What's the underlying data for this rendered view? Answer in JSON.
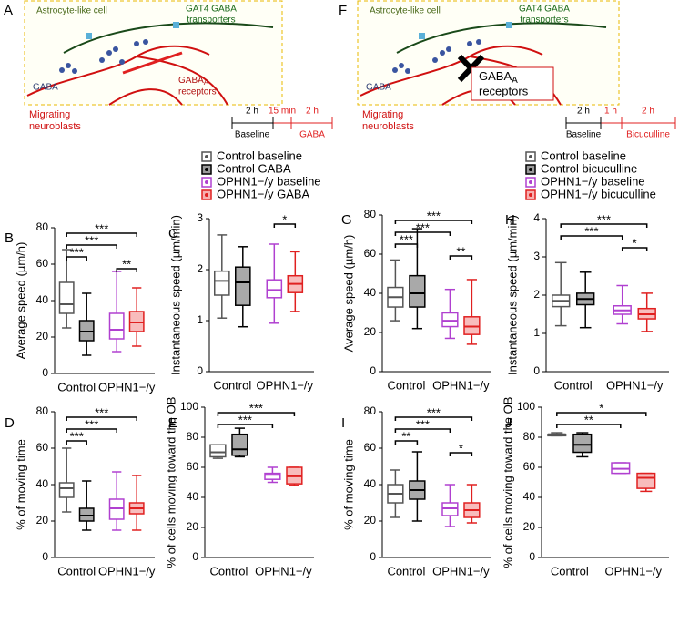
{
  "diagrams": [
    {
      "panel": "A",
      "astrocyte": "Astrocyte-like cell",
      "transporters": [
        "GAT4 GABA",
        "transporters"
      ],
      "gaba": "GABA",
      "receptor_main": "GABA",
      "receptor_sub": "A",
      "receptor_line2": "receptors",
      "neuroblasts": [
        "Migrating",
        "neuroblasts"
      ],
      "durations": [
        "2 h",
        "15 min",
        "2 h"
      ],
      "phases": [
        "Baseline",
        "GABA"
      ]
    },
    {
      "panel": "F",
      "astrocyte": "Astrocyte-like cell",
      "transporters": [
        "GAT4 GABA",
        "transporters"
      ],
      "gaba": "GABA",
      "receptor_main": "GABA",
      "receptor_sub": "A",
      "receptor_line2": "receptors",
      "neuroblasts": [
        "Migrating",
        "neuroblasts"
      ],
      "durations": [
        "2 h",
        "1 h",
        "2 h"
      ],
      "phases": [
        "Baseline",
        "Bicuculline"
      ]
    }
  ],
  "legends": [
    {
      "entries": [
        {
          "name": "Control baseline",
          "fill": "#ffffff",
          "stroke": "#555555"
        },
        {
          "name": "Control GABA",
          "fill": "#9a9a9a",
          "stroke": "#000000"
        },
        {
          "name": "OPHN1−/y baseline",
          "fill": "#ffffff",
          "stroke": "#b040d0"
        },
        {
          "name": "OPHN1−/y GABA",
          "fill": "#f7b0b0",
          "stroke": "#e02020"
        }
      ]
    },
    {
      "entries": [
        {
          "name": "Control baseline",
          "fill": "#ffffff",
          "stroke": "#555555"
        },
        {
          "name": "Control bicuculline",
          "fill": "#9a9a9a",
          "stroke": "#000000"
        },
        {
          "name": "OPHN1−/y baseline",
          "fill": "#ffffff",
          "stroke": "#b040d0"
        },
        {
          "name": "OPHN1−/y bicuculline",
          "fill": "#f7b0b0",
          "stroke": "#e02020"
        }
      ]
    }
  ],
  "chart_data": [
    {
      "type": "box",
      "panel": "B",
      "ylabel": "Average speed (µm/h)",
      "categories": [
        "Control",
        "OPHN1−/y"
      ],
      "ylim": [
        0,
        80
      ],
      "yticks": [
        0,
        20,
        40,
        60,
        80
      ],
      "boxes": [
        {
          "min": 25,
          "q1": 33,
          "median": 38,
          "q3": 50,
          "max": 68
        },
        {
          "min": 10,
          "q1": 18,
          "median": 23,
          "q3": 29,
          "max": 44
        },
        {
          "min": 12,
          "q1": 19,
          "median": 24,
          "q3": 33,
          "max": 56
        },
        {
          "min": 15,
          "q1": 23,
          "median": 28,
          "q3": 34,
          "max": 47
        }
      ],
      "significance": [
        {
          "between": [
            0,
            3
          ],
          "label": "***"
        },
        {
          "between": [
            0,
            2
          ],
          "label": "***"
        },
        {
          "between": [
            0,
            1
          ],
          "label": "***"
        },
        {
          "between": [
            2,
            3
          ],
          "label": "**"
        }
      ]
    },
    {
      "type": "box",
      "panel": "C",
      "ylabel": "Instantaneous speed (µm/min)",
      "categories": [
        "Control",
        "OPHN1−/y"
      ],
      "ylim": [
        0,
        3
      ],
      "yticks": [
        0,
        1,
        2,
        3
      ],
      "boxes": [
        {
          "min": 1.05,
          "q1": 1.5,
          "median": 1.78,
          "q3": 1.97,
          "max": 2.68
        },
        {
          "min": 0.88,
          "q1": 1.3,
          "median": 1.75,
          "q3": 2.05,
          "max": 2.45
        },
        {
          "min": 0.95,
          "q1": 1.45,
          "median": 1.6,
          "q3": 1.8,
          "max": 2.5
        },
        {
          "min": 1.18,
          "q1": 1.55,
          "median": 1.72,
          "q3": 1.88,
          "max": 2.35
        }
      ],
      "significance": [
        {
          "between": [
            2,
            3
          ],
          "label": "*"
        }
      ]
    },
    {
      "type": "box",
      "panel": "D",
      "ylabel": "% of moving time",
      "categories": [
        "Control",
        "OPHN1−/y"
      ],
      "ylim": [
        0,
        80
      ],
      "yticks": [
        0,
        20,
        40,
        60,
        80
      ],
      "boxes": [
        {
          "min": 25,
          "q1": 33,
          "median": 38,
          "q3": 41,
          "max": 60
        },
        {
          "min": 15,
          "q1": 20,
          "median": 23,
          "q3": 27,
          "max": 42
        },
        {
          "min": 15,
          "q1": 21,
          "median": 27,
          "q3": 32,
          "max": 47
        },
        {
          "min": 15,
          "q1": 24,
          "median": 27,
          "q3": 30,
          "max": 45
        }
      ],
      "significance": [
        {
          "between": [
            0,
            3
          ],
          "label": "***"
        },
        {
          "between": [
            0,
            2
          ],
          "label": "***"
        },
        {
          "between": [
            0,
            1
          ],
          "label": "***"
        }
      ]
    },
    {
      "type": "box",
      "panel": "E",
      "ylabel": "% of cells moving toward the OB",
      "categories": [
        "Control",
        "OPHN1−/y"
      ],
      "ylim": [
        0,
        100
      ],
      "yticks": [
        0,
        20,
        40,
        60,
        80,
        100
      ],
      "boxes": [
        {
          "min": 66,
          "q1": 67,
          "median": 70,
          "q3": 75,
          "max": 75
        },
        {
          "min": 67,
          "q1": 68,
          "median": 72,
          "q3": 82,
          "max": 86
        },
        {
          "min": 50,
          "q1": 52,
          "median": 55,
          "q3": 56,
          "max": 60
        },
        {
          "min": 48,
          "q1": 49,
          "median": 54,
          "q3": 60,
          "max": 60
        }
      ],
      "significance": [
        {
          "between": [
            0,
            3
          ],
          "label": "***"
        },
        {
          "between": [
            0,
            2
          ],
          "label": "***"
        }
      ]
    },
    {
      "type": "box",
      "panel": "G",
      "ylabel": "Average speed (µm/h)",
      "categories": [
        "Control",
        "OPHN1−/y"
      ],
      "ylim": [
        0,
        80
      ],
      "yticks": [
        0,
        20,
        40,
        60,
        80
      ],
      "boxes": [
        {
          "min": 26,
          "q1": 33,
          "median": 38,
          "q3": 43,
          "max": 57
        },
        {
          "min": 22,
          "q1": 33,
          "median": 40,
          "q3": 49,
          "max": 73
        },
        {
          "min": 17,
          "q1": 23,
          "median": 26,
          "q3": 30,
          "max": 42
        },
        {
          "min": 14,
          "q1": 19,
          "median": 23,
          "q3": 28,
          "max": 47
        }
      ],
      "significance": [
        {
          "between": [
            0,
            3
          ],
          "label": "***"
        },
        {
          "between": [
            0,
            2
          ],
          "label": "***"
        },
        {
          "between": [
            0,
            1
          ],
          "label": "***"
        },
        {
          "between": [
            2,
            3
          ],
          "label": "**"
        }
      ]
    },
    {
      "type": "box",
      "panel": "H",
      "ylabel": "Instantaneous speed (µm/min)",
      "categories": [
        "Control",
        "OPHN1−/y"
      ],
      "ylim": [
        0,
        4
      ],
      "yticks": [
        0,
        1,
        2,
        3,
        4
      ],
      "boxes": [
        {
          "min": 1.2,
          "q1": 1.7,
          "median": 1.85,
          "q3": 2.0,
          "max": 2.85
        },
        {
          "min": 1.15,
          "q1": 1.75,
          "median": 1.9,
          "q3": 2.05,
          "max": 2.6
        },
        {
          "min": 1.25,
          "q1": 1.5,
          "median": 1.6,
          "q3": 1.72,
          "max": 2.25
        },
        {
          "min": 1.05,
          "q1": 1.38,
          "median": 1.5,
          "q3": 1.65,
          "max": 2.05
        }
      ],
      "significance": [
        {
          "between": [
            0,
            3
          ],
          "label": "***"
        },
        {
          "between": [
            0,
            2
          ],
          "label": "***"
        },
        {
          "between": [
            2,
            3
          ],
          "label": "*"
        }
      ]
    },
    {
      "type": "box",
      "panel": "I",
      "ylabel": "% of moving time",
      "categories": [
        "Control",
        "OPHN1−/y"
      ],
      "ylim": [
        0,
        80
      ],
      "yticks": [
        0,
        20,
        40,
        60,
        80
      ],
      "boxes": [
        {
          "min": 22,
          "q1": 30,
          "median": 35,
          "q3": 40,
          "max": 48
        },
        {
          "min": 20,
          "q1": 32,
          "median": 37,
          "q3": 42,
          "max": 58
        },
        {
          "min": 17,
          "q1": 23,
          "median": 27,
          "q3": 30,
          "max": 40
        },
        {
          "min": 19,
          "q1": 22,
          "median": 26,
          "q3": 30,
          "max": 40
        }
      ],
      "significance": [
        {
          "between": [
            0,
            3
          ],
          "label": "***"
        },
        {
          "between": [
            0,
            2
          ],
          "label": "***"
        },
        {
          "between": [
            0,
            1
          ],
          "label": "**"
        },
        {
          "between": [
            2,
            3
          ],
          "label": "*"
        }
      ]
    },
    {
      "type": "box",
      "panel": "J",
      "ylabel": "% of cells moving toward the OB",
      "categories": [
        "Control",
        "OPHN1−/y"
      ],
      "ylim": [
        0,
        100
      ],
      "yticks": [
        0,
        20,
        40,
        60,
        80,
        100
      ],
      "boxes": [
        {
          "min": 81,
          "q1": 81,
          "median": 82,
          "q3": 82,
          "max": 83
        },
        {
          "min": 67,
          "q1": 70,
          "median": 75,
          "q3": 82,
          "max": 83
        },
        {
          "min": 56,
          "q1": 56,
          "median": 59,
          "q3": 63,
          "max": 63
        },
        {
          "min": 44,
          "q1": 46,
          "median": 53,
          "q3": 56,
          "max": 56
        }
      ],
      "significance": [
        {
          "between": [
            0,
            3
          ],
          "label": "*"
        },
        {
          "between": [
            0,
            2
          ],
          "label": "**"
        }
      ]
    }
  ]
}
